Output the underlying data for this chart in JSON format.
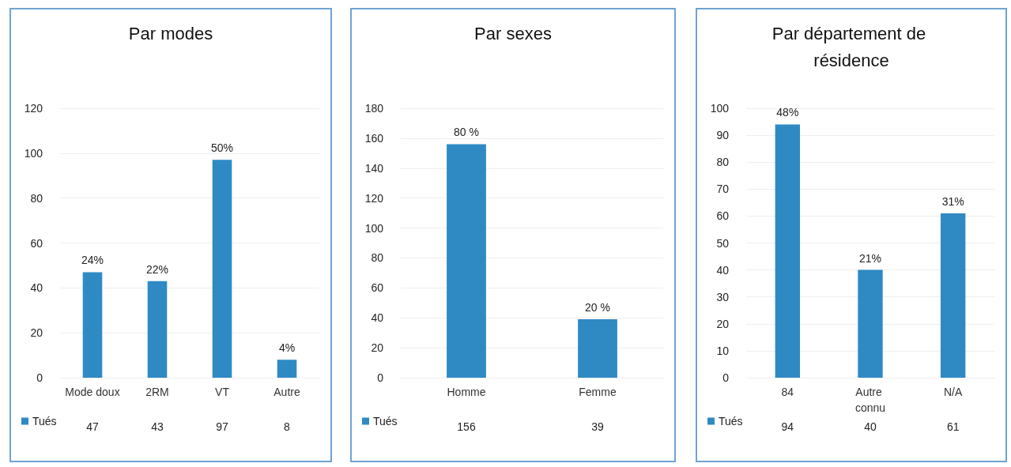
{
  "chart_data": [
    {
      "type": "bar",
      "title": "Par modes",
      "categories": [
        "Mode doux",
        "2RM",
        "VT",
        "Autre"
      ],
      "series": [
        {
          "name": "Tués",
          "color": "#2f8ac4",
          "values": [
            47,
            43,
            97,
            8
          ]
        }
      ],
      "annotations": [
        {
          "text": "24%",
          "x": "Mode doux",
          "y": 47
        },
        {
          "text": "22%",
          "x": "2RM",
          "y": 43
        },
        {
          "text": "50%",
          "x": "VT",
          "y": 97
        },
        {
          "text": "4%",
          "x": "Autre",
          "y": 8
        }
      ],
      "ylim": [
        0,
        120
      ],
      "yticks": [
        0,
        20,
        40,
        60,
        80,
        100,
        120
      ],
      "grid": "y",
      "legend": "bottom left",
      "data_labels": true
    },
    {
      "type": "bar",
      "title": "Par sexes",
      "categories": [
        "Homme",
        "Femme"
      ],
      "series": [
        {
          "name": "Tués",
          "color": "#2f8ac4",
          "values": [
            156,
            39
          ]
        }
      ],
      "annotations": [
        {
          "text": "80 %",
          "x": "Homme",
          "y": 156
        },
        {
          "text": "20 %",
          "x": "Femme",
          "y": 39
        }
      ],
      "ylim": [
        0,
        180
      ],
      "yticks": [
        0,
        20,
        40,
        60,
        80,
        100,
        120,
        140,
        160,
        180
      ],
      "grid": "y",
      "legend": "bottom left",
      "data_labels": true
    },
    {
      "type": "bar",
      "title": "Par département de résidence",
      "categories": [
        "84",
        "Autre connu",
        "N/A"
      ],
      "series": [
        {
          "name": "Tués",
          "color": "#2f8ac4",
          "values": [
            94,
            40,
            61
          ]
        }
      ],
      "annotations": [
        {
          "text": "48%",
          "x": "84",
          "y": 94
        },
        {
          "text": "21%",
          "x": "Autre connu",
          "y": 40
        },
        {
          "text": "31%",
          "x": "N/A",
          "y": 61
        }
      ],
      "ylim": [
        0,
        100
      ],
      "yticks": [
        0,
        10,
        20,
        30,
        40,
        50,
        60,
        70,
        80,
        90,
        100
      ],
      "grid": "y",
      "legend": "bottom left",
      "data_labels": true
    }
  ]
}
